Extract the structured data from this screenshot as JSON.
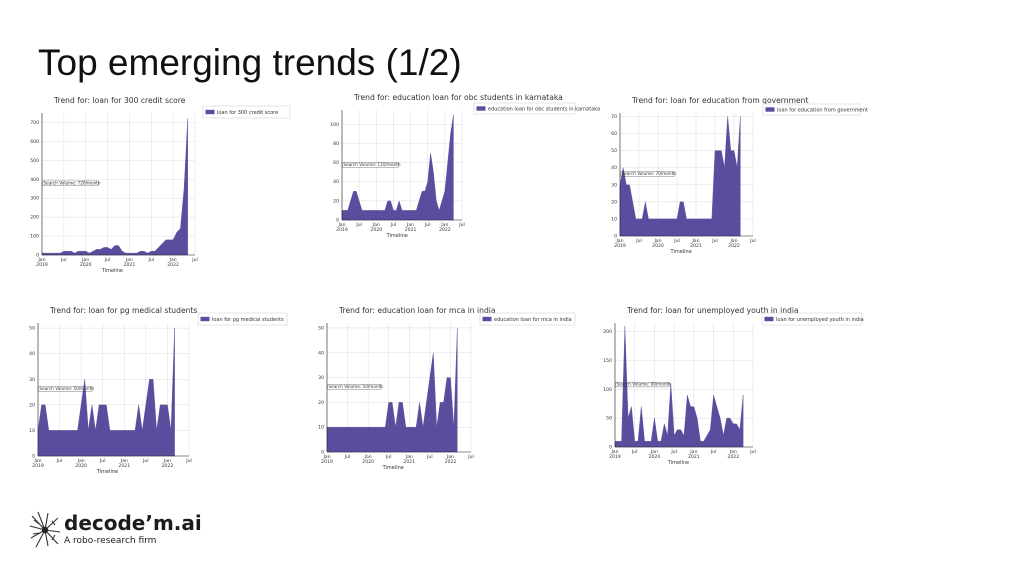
{
  "slide": {
    "title": "Top emerging trends (1/2)"
  },
  "brand": {
    "name": "decode’m.ai",
    "tagline": "A robo-research firm"
  },
  "colors": {
    "fill": "#5b4d9e",
    "grid": "#dddddd",
    "axis": "#222222"
  },
  "chart_data": [
    {
      "type": "area",
      "title": "Trend for: loan for 300 credit score",
      "legend": "loan for 300 credit score",
      "legend_position": "top-right",
      "annotation": "Search Volume: 720/month",
      "xlabel": "Timeline",
      "ylim": [
        0,
        750
      ],
      "yticks": [
        0,
        100,
        200,
        300,
        400,
        500,
        600,
        700
      ],
      "grid": true,
      "x_tick_labels": [
        "Jan\n2019",
        "Jul",
        "Jan\n2020",
        "Jul",
        "Jan\n2021",
        "Jul",
        "Jan\n2022",
        "Jul"
      ],
      "x_range": [
        0,
        42
      ],
      "series": [
        {
          "values": [
            10,
            10,
            10,
            10,
            10,
            10,
            20,
            20,
            20,
            10,
            20,
            20,
            20,
            10,
            20,
            30,
            30,
            40,
            40,
            30,
            50,
            50,
            20,
            10,
            10,
            10,
            10,
            20,
            20,
            10,
            20,
            20,
            40,
            60,
            80,
            80,
            80,
            120,
            140,
            350,
            720
          ]
        }
      ]
    },
    {
      "type": "area",
      "title": "Trend for: education loan for obc students in karnataka",
      "legend": "education loan for obc students in karnataka",
      "legend_position": "top-right",
      "annotation": "Search Volume: 110/month",
      "xlabel": "Timeline",
      "ylim": [
        0,
        115
      ],
      "yticks": [
        0,
        20,
        40,
        60,
        80,
        100
      ],
      "grid": true,
      "x_tick_labels": [
        "Jan\n2019",
        "Jul",
        "Jan\n2020",
        "Jul",
        "Jan\n2021",
        "Jul",
        "Jan\n2022",
        "Jul"
      ],
      "x_range": [
        0,
        42
      ],
      "series": [
        {
          "values": [
            10,
            10,
            10,
            20,
            30,
            30,
            20,
            10,
            10,
            10,
            10,
            10,
            10,
            10,
            10,
            10,
            20,
            20,
            10,
            10,
            20,
            10,
            10,
            10,
            10,
            10,
            10,
            20,
            30,
            30,
            40,
            70,
            50,
            20,
            10,
            20,
            30,
            60,
            90,
            110
          ]
        }
      ]
    },
    {
      "type": "area",
      "title": "Trend for: loan for education from government",
      "legend": "loan for education from government",
      "legend_position": "top-right",
      "annotation": "Search Volume: 70/month",
      "xlabel": "Timeline",
      "ylim": [
        0,
        72
      ],
      "yticks": [
        0,
        10,
        20,
        30,
        40,
        50,
        60,
        70
      ],
      "grid": true,
      "x_tick_labels": [
        "Jan\n2019",
        "Jul",
        "Jan\n2020",
        "Jul",
        "Jan\n2021",
        "Jul",
        "Jan\n2022",
        "Jul"
      ],
      "x_range": [
        0,
        42
      ],
      "series": [
        {
          "values": [
            30,
            40,
            30,
            30,
            20,
            10,
            10,
            10,
            20,
            10,
            10,
            10,
            10,
            10,
            10,
            10,
            10,
            10,
            10,
            20,
            20,
            10,
            10,
            10,
            10,
            10,
            10,
            10,
            10,
            10,
            50,
            50,
            50,
            40,
            70,
            50,
            50,
            40,
            70
          ]
        }
      ]
    },
    {
      "type": "area",
      "title": "Trend for: loan for pg medical students",
      "legend": "loan for pg medical students",
      "legend_position": "top-right",
      "annotation": "Search Volume: 50/month",
      "xlabel": "Timeline",
      "ylim": [
        0,
        52
      ],
      "yticks": [
        0,
        10,
        20,
        30,
        40,
        50
      ],
      "grid": true,
      "x_tick_labels": [
        "Jan\n2019",
        "Jul",
        "Jan\n2020",
        "Jul",
        "Jan\n2021",
        "Jul",
        "Jan\n2022",
        "Jul"
      ],
      "x_range": [
        0,
        42
      ],
      "series": [
        {
          "values": [
            10,
            20,
            20,
            10,
            10,
            10,
            10,
            10,
            10,
            10,
            10,
            10,
            20,
            30,
            10,
            20,
            10,
            20,
            20,
            20,
            10,
            10,
            10,
            10,
            10,
            10,
            10,
            10,
            20,
            10,
            20,
            30,
            30,
            10,
            20,
            20,
            20,
            10,
            50
          ]
        }
      ]
    },
    {
      "type": "area",
      "title": "Trend for: education loan for mca in india",
      "legend": "education loan for mca in india",
      "legend_position": "top-right",
      "annotation": "Search Volume: 50/month",
      "xlabel": "Timeline",
      "ylim": [
        0,
        52
      ],
      "yticks": [
        0,
        10,
        20,
        30,
        40,
        50
      ],
      "grid": true,
      "x_tick_labels": [
        "Jan\n2019",
        "Jul",
        "Jan\n2020",
        "Jul",
        "Jan\n2021",
        "Jul",
        "Jan\n2022",
        "Jul"
      ],
      "x_range": [
        0,
        42
      ],
      "series": [
        {
          "values": [
            10,
            10,
            10,
            10,
            10,
            10,
            10,
            10,
            10,
            10,
            10,
            10,
            10,
            10,
            10,
            10,
            10,
            10,
            20,
            20,
            10,
            20,
            20,
            10,
            10,
            10,
            10,
            20,
            10,
            20,
            30,
            40,
            10,
            20,
            20,
            30,
            30,
            10,
            50
          ]
        }
      ]
    },
    {
      "type": "area",
      "title": "Trend for: loan for unemployed youth in india",
      "legend": "loan for unemployed youth in india",
      "legend_position": "top-right",
      "annotation": "Search Volume: 90/month",
      "xlabel": "Timeline",
      "ylim": [
        0,
        215
      ],
      "yticks": [
        0,
        50,
        100,
        150,
        200
      ],
      "grid": true,
      "x_tick_labels": [
        "Jan\n2019",
        "Jul",
        "Jan\n2020",
        "Jul",
        "Jan\n2021",
        "Jul",
        "Jan\n2022",
        "Jul"
      ],
      "x_range": [
        0,
        42
      ],
      "series": [
        {
          "values": [
            10,
            10,
            10,
            210,
            50,
            70,
            10,
            10,
            70,
            10,
            10,
            10,
            50,
            10,
            10,
            40,
            20,
            110,
            20,
            30,
            30,
            20,
            90,
            70,
            70,
            50,
            10,
            10,
            20,
            30,
            90,
            70,
            50,
            20,
            50,
            50,
            40,
            40,
            30,
            90
          ]
        }
      ]
    }
  ]
}
